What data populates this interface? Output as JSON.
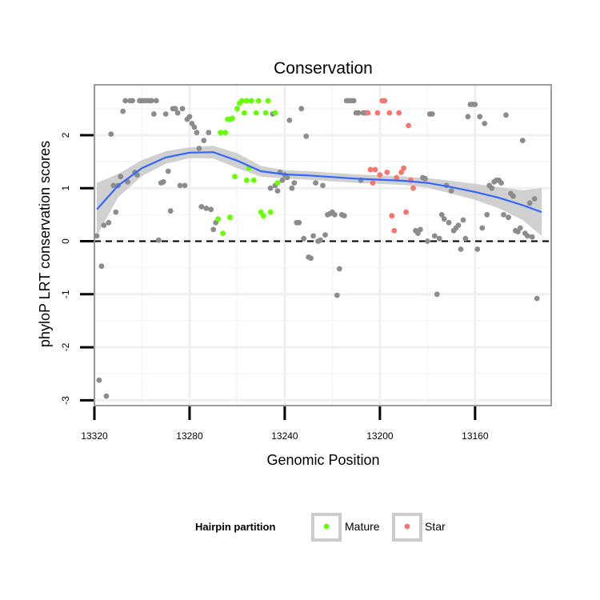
{
  "chart_data": {
    "type": "scatter",
    "title": "Conservation",
    "xlabel": "Genomic Position",
    "ylabel": "phyloP LRT conservation scores",
    "x_reversed": true,
    "xlim": [
      13320,
      13128
    ],
    "ylim": [
      -3.1,
      2.95
    ],
    "x_ticks": [
      13320,
      13280,
      13240,
      13200,
      13160
    ],
    "y_ticks": [
      -3,
      -2,
      -1,
      0,
      1,
      2
    ],
    "reference_line": {
      "y": 0,
      "style": "dashed"
    },
    "legend": {
      "title": "Hairpin partition",
      "entries": [
        {
          "label": "Mature",
          "color": "#66FF00"
        },
        {
          "label": "Star",
          "color": "#F8766D"
        }
      ]
    },
    "colors": {
      "other": "#8C8C8C",
      "Mature": "#66FF00",
      "Star": "#F8766D",
      "smooth": "#3366FF",
      "band": "#C8C8C8"
    },
    "series": [
      {
        "name": "Other",
        "points": [
          [
            13319,
            0.1
          ],
          [
            13318,
            -2.62
          ],
          [
            13317,
            -0.47
          ],
          [
            13316,
            0.3
          ],
          [
            13315,
            -2.92
          ],
          [
            13314,
            0.35
          ],
          [
            13313,
            2.02
          ],
          [
            13312,
            1.05
          ],
          [
            13311,
            0.55
          ],
          [
            13310,
            1.05
          ],
          [
            13309,
            1.22
          ],
          [
            13308,
            2.45
          ],
          [
            13307,
            2.65
          ],
          [
            13306,
            1.12
          ],
          [
            13305,
            2.65
          ],
          [
            13304,
            2.65
          ],
          [
            13303,
            1.3
          ],
          [
            13302,
            1.25
          ],
          [
            13301,
            2.65
          ],
          [
            13300,
            2.65
          ],
          [
            13299,
            2.65
          ],
          [
            13298,
            2.65
          ],
          [
            13297,
            2.65
          ],
          [
            13296,
            2.65
          ],
          [
            13295,
            2.4
          ],
          [
            13294,
            2.65
          ],
          [
            13293,
            0.02
          ],
          [
            13292,
            1.1
          ],
          [
            13291,
            1.12
          ],
          [
            13290,
            2.4
          ],
          [
            13289,
            1.32
          ],
          [
            13288,
            0.57
          ],
          [
            13287,
            2.5
          ],
          [
            13286,
            2.5
          ],
          [
            13285,
            2.42
          ],
          [
            13284,
            1.05
          ],
          [
            13283,
            2.5
          ],
          [
            13282,
            1.05
          ],
          [
            13281,
            2.3
          ],
          [
            13280,
            2.35
          ],
          [
            13279,
            2.22
          ],
          [
            13278,
            2.15
          ],
          [
            13277,
            2.05
          ],
          [
            13276,
            1.75
          ],
          [
            13275,
            0.65
          ],
          [
            13274,
            1.9
          ],
          [
            13273,
            0.62
          ],
          [
            13272,
            2.05
          ],
          [
            13271,
            0.6
          ],
          [
            13270,
            0.22
          ],
          [
            13269,
            0.35
          ],
          [
            13246,
            1.0
          ],
          [
            13245,
            2.4
          ],
          [
            13244,
            1.05
          ],
          [
            13243,
            0.95
          ],
          [
            13242,
            1.3
          ],
          [
            13241,
            1.15
          ],
          [
            13240,
            1.25
          ],
          [
            13239,
            1.2
          ],
          [
            13238,
            2.28
          ],
          [
            13237,
            1.0
          ],
          [
            13236,
            1.1
          ],
          [
            13235,
            0.35
          ],
          [
            13234,
            0.35
          ],
          [
            13233,
            2.5
          ],
          [
            13232,
            0.05
          ],
          [
            13231,
            1.98
          ],
          [
            13230,
            -0.3
          ],
          [
            13229,
            -0.32
          ],
          [
            13228,
            0.1
          ],
          [
            13227,
            1.1
          ],
          [
            13226,
            0.0
          ],
          [
            13225,
            0.02
          ],
          [
            13224,
            1.05
          ],
          [
            13223,
            0.12
          ],
          [
            13222,
            0.5
          ],
          [
            13221,
            0.52
          ],
          [
            13220,
            0.55
          ],
          [
            13219,
            0.5
          ],
          [
            13218,
            -1.02
          ],
          [
            13217,
            -0.52
          ],
          [
            13216,
            0.5
          ],
          [
            13215,
            0.48
          ],
          [
            13214,
            2.65
          ],
          [
            13213,
            2.65
          ],
          [
            13212,
            2.65
          ],
          [
            13211,
            2.65
          ],
          [
            13210,
            2.42
          ],
          [
            13209,
            2.42
          ],
          [
            13208,
            1.15
          ],
          [
            13207,
            2.42
          ],
          [
            13206,
            2.42
          ],
          [
            13185,
            0.2
          ],
          [
            13184,
            0.15
          ],
          [
            13183,
            0.22
          ],
          [
            13182,
            1.2
          ],
          [
            13181,
            1.18
          ],
          [
            13180,
            0.0
          ],
          [
            13179,
            2.4
          ],
          [
            13178,
            2.4
          ],
          [
            13177,
            0.1
          ],
          [
            13176,
            -1.0
          ],
          [
            13175,
            0.05
          ],
          [
            13174,
            0.5
          ],
          [
            13173,
            0.42
          ],
          [
            13172,
            1.05
          ],
          [
            13171,
            0.35
          ],
          [
            13170,
            0.95
          ],
          [
            13169,
            0.2
          ],
          [
            13168,
            0.25
          ],
          [
            13167,
            0.3
          ],
          [
            13166,
            -0.15
          ],
          [
            13165,
            0.4
          ],
          [
            13164,
            0.05
          ],
          [
            13163,
            2.35
          ],
          [
            13162,
            2.58
          ],
          [
            13161,
            2.58
          ],
          [
            13160,
            2.58
          ],
          [
            13159,
            -0.15
          ],
          [
            13158,
            2.35
          ],
          [
            13157,
            0.25
          ],
          [
            13156,
            2.22
          ],
          [
            13155,
            0.5
          ],
          [
            13154,
            1.05
          ],
          [
            13153,
            1.0
          ],
          [
            13152,
            1.12
          ],
          [
            13151,
            1.15
          ],
          [
            13150,
            1.15
          ],
          [
            13149,
            1.1
          ],
          [
            13148,
            0.5
          ],
          [
            13147,
            2.38
          ],
          [
            13146,
            0.45
          ],
          [
            13145,
            0.9
          ],
          [
            13144,
            0.85
          ],
          [
            13143,
            0.2
          ],
          [
            13142,
            0.18
          ],
          [
            13141,
            0.25
          ],
          [
            13140,
            1.9
          ],
          [
            13139,
            0.15
          ],
          [
            13138,
            0.1
          ],
          [
            13137,
            0.72
          ],
          [
            13136,
            0.08
          ],
          [
            13135,
            0.8
          ],
          [
            13134,
            -1.08
          ]
        ]
      },
      {
        "name": "Mature",
        "points": [
          [
            13268,
            0.42
          ],
          [
            13267,
            2.05
          ],
          [
            13266,
            0.15
          ],
          [
            13265,
            2.05
          ],
          [
            13264,
            2.3
          ],
          [
            13263,
            2.3
          ],
          [
            13262,
            2.32
          ],
          [
            13261,
            1.22
          ],
          [
            13260,
            2.5
          ],
          [
            13259,
            2.6
          ],
          [
            13258,
            2.65
          ],
          [
            13257,
            2.42
          ],
          [
            13256,
            2.65
          ],
          [
            13255,
            1.38
          ],
          [
            13254,
            2.65
          ],
          [
            13253,
            1.15
          ],
          [
            13252,
            2.42
          ],
          [
            13251,
            2.65
          ],
          [
            13250,
            0.55
          ],
          [
            13249,
            0.48
          ],
          [
            13248,
            2.42
          ],
          [
            13247,
            2.65
          ]
        ]
      },
      {
        "name": "Star",
        "points": [
          [
            13205,
            2.42
          ],
          [
            13204,
            1.35
          ],
          [
            13203,
            1.1
          ],
          [
            13202,
            1.35
          ],
          [
            13201,
            2.42
          ],
          [
            13200,
            1.25
          ],
          [
            13199,
            2.65
          ],
          [
            13198,
            2.65
          ],
          [
            13197,
            1.3
          ],
          [
            13196,
            2.42
          ],
          [
            13195,
            0.48
          ],
          [
            13194,
            0.2
          ],
          [
            13193,
            1.2
          ],
          [
            13192,
            2.42
          ],
          [
            13191,
            1.3
          ],
          [
            13190,
            1.38
          ],
          [
            13189,
            0.55
          ],
          [
            13188,
            2.18
          ],
          [
            13187,
            1.15
          ],
          [
            13186,
            1.0
          ]
        ]
      }
    ],
    "extra_mature_points": [
      [
        13263,
        0.45
      ],
      [
        13256,
        1.15
      ],
      [
        13246,
        0.55
      ],
      [
        13244,
        2.42
      ],
      [
        13243,
        1.1
      ]
    ],
    "smooth": {
      "x": [
        13319,
        13310,
        13300,
        13290,
        13280,
        13270,
        13260,
        13250,
        13240,
        13230,
        13220,
        13210,
        13200,
        13190,
        13180,
        13170,
        13160,
        13150,
        13140,
        13132
      ],
      "y": [
        0.6,
        1.05,
        1.38,
        1.58,
        1.67,
        1.68,
        1.52,
        1.32,
        1.26,
        1.24,
        1.21,
        1.18,
        1.16,
        1.14,
        1.1,
        1.02,
        0.93,
        0.82,
        0.68,
        0.55
      ],
      "se": [
        0.5,
        0.22,
        0.15,
        0.12,
        0.1,
        0.12,
        0.14,
        0.1,
        0.08,
        0.08,
        0.08,
        0.08,
        0.08,
        0.08,
        0.09,
        0.12,
        0.15,
        0.2,
        0.28,
        0.45
      ]
    }
  }
}
